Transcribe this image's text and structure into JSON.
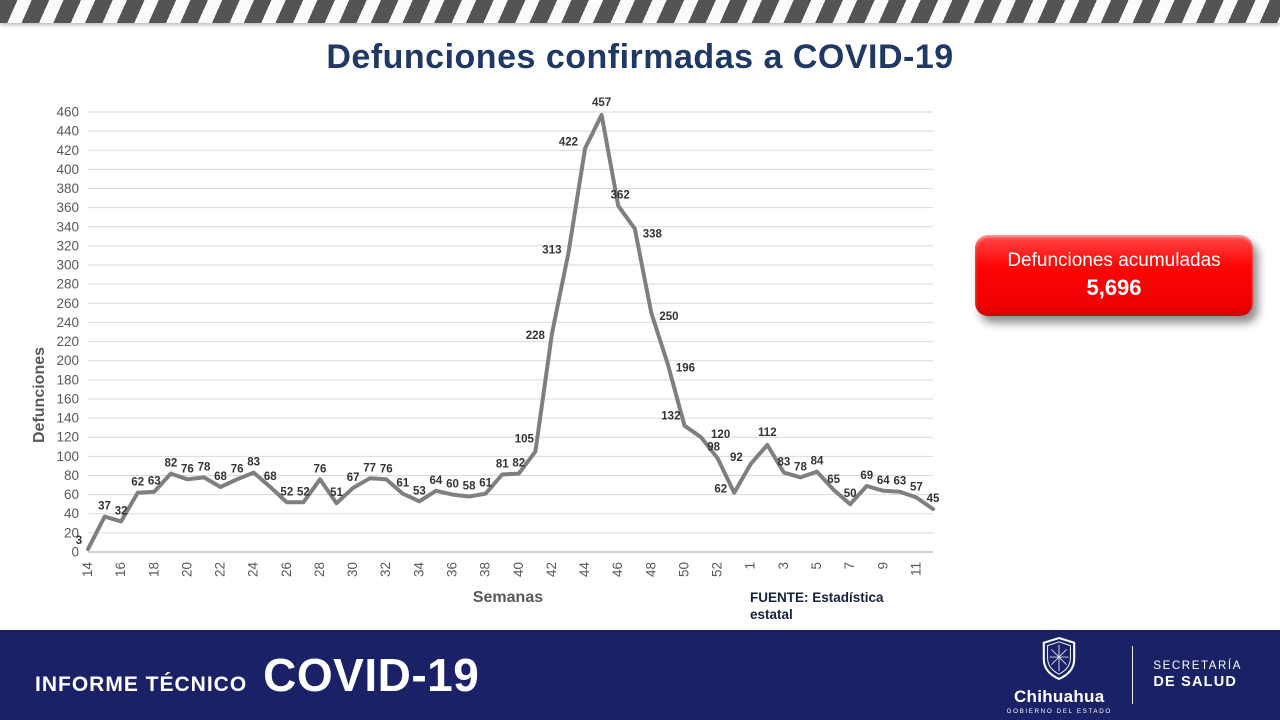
{
  "title": "Defunciones confirmadas a COVID-19",
  "chart_data": {
    "type": "line",
    "title": "Defunciones confirmadas a COVID-19",
    "xlabel": "Semanas",
    "ylabel": "Defunciones",
    "ylim": [
      0,
      460
    ],
    "ytick_step": 20,
    "grid": true,
    "legend": "none",
    "line_color": "#7f7f7f",
    "categories": [
      "14",
      "15",
      "16",
      "17",
      "18",
      "19",
      "20",
      "21",
      "22",
      "23",
      "24",
      "25",
      "26",
      "27",
      "28",
      "29",
      "30",
      "31",
      "32",
      "33",
      "34",
      "35",
      "36",
      "37",
      "38",
      "39",
      "40",
      "41",
      "42",
      "43",
      "44",
      "45",
      "46",
      "47",
      "48",
      "49",
      "50",
      "51",
      "52",
      "53",
      "1",
      "2",
      "3",
      "4",
      "5",
      "6",
      "7",
      "8",
      "9",
      "10",
      "11",
      "12"
    ],
    "values": [
      3,
      37,
      32,
      62,
      63,
      82,
      76,
      78,
      68,
      76,
      83,
      68,
      52,
      52,
      76,
      51,
      67,
      77,
      76,
      61,
      53,
      64,
      60,
      58,
      61,
      81,
      82,
      105,
      228,
      313,
      422,
      457,
      362,
      338,
      250,
      196,
      132,
      120,
      98,
      62,
      92,
      112,
      83,
      78,
      84,
      65,
      50,
      69,
      64,
      63,
      57,
      45
    ]
  },
  "source": {
    "text": "FUENTE: Estadística estatal"
  },
  "badge": {
    "label": "Defunciones acumuladas",
    "value": "5,696"
  },
  "footer": {
    "kicker": "INFORME TÉCNICO",
    "brand": "COVID-19",
    "logo_wordmark": "Chihuahua",
    "logo_subtitle": "GOBIERNO DEL ESTADO",
    "secretaria_line1": "SECRETARÍA",
    "secretaria_line2": "DE SALUD"
  },
  "colors": {
    "accent_red": "#ff0000",
    "footer_navy": "#1b2166",
    "title_navy": "#1f3864",
    "line_gray": "#7f7f7f",
    "grid_gray": "#d9d9d9",
    "axis_text_gray": "#595959",
    "data_label_gray": "#333333"
  }
}
